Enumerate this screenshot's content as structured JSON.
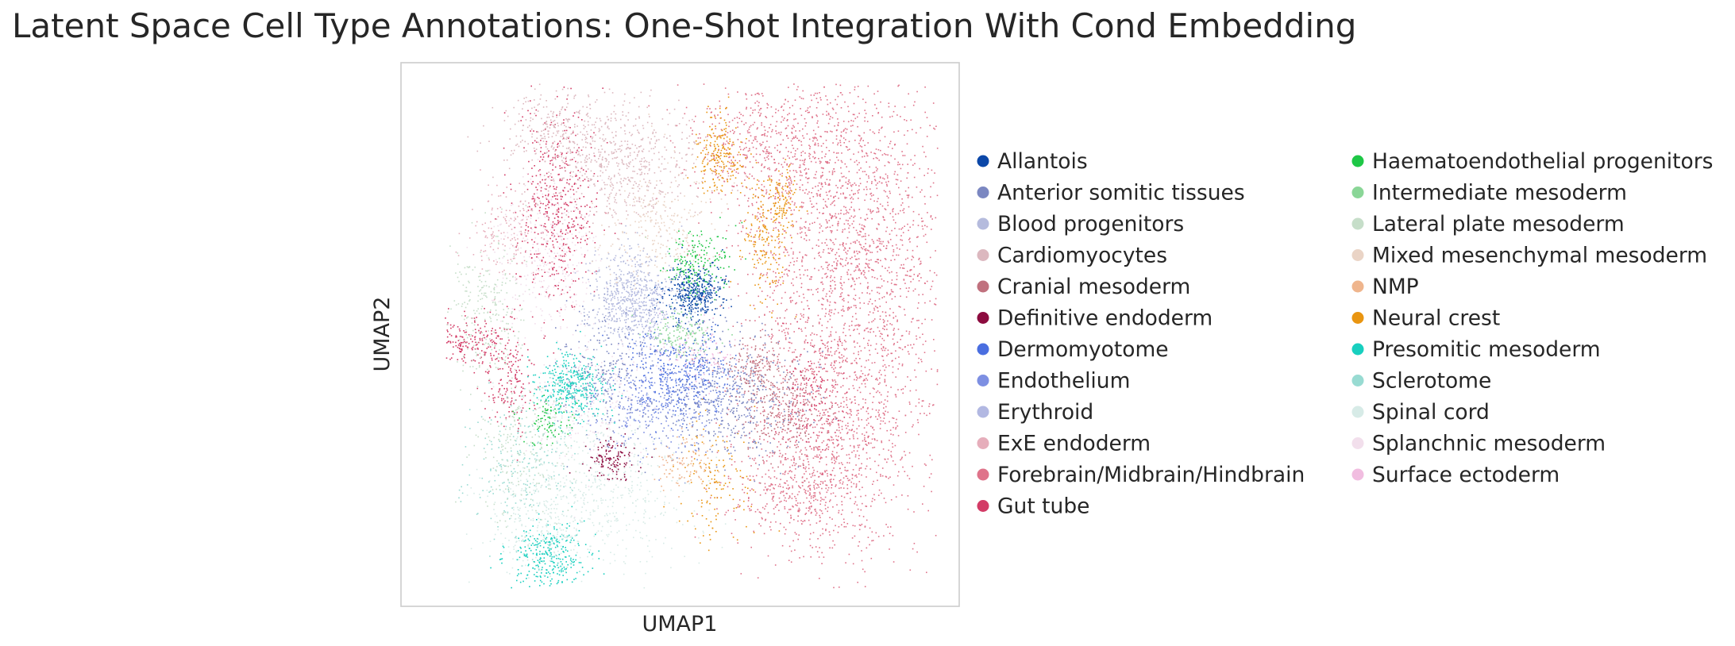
{
  "chart_data": {
    "type": "scatter",
    "title": "Latent Space Cell Type Annotations: One-Shot Integration With Cond Embedding",
    "xlabel": "UMAP1",
    "ylabel": "UMAP2",
    "grid": false,
    "axis_ticks": "none",
    "legend_position": "right, two columns",
    "series": [
      {
        "name": "Allantois",
        "color": "#0b47a8"
      },
      {
        "name": "Anterior somitic tissues",
        "color": "#7b87c1"
      },
      {
        "name": "Blood progenitors",
        "color": "#b5bbdd"
      },
      {
        "name": "Cardiomyocytes",
        "color": "#dcb8bf"
      },
      {
        "name": "Cranial mesoderm",
        "color": "#c0717e"
      },
      {
        "name": "Definitive endoderm",
        "color": "#8c0b3f"
      },
      {
        "name": "Dermomyotome",
        "color": "#4a6ee0"
      },
      {
        "name": "Endothelium",
        "color": "#7d8fe2"
      },
      {
        "name": "Erythroid",
        "color": "#b2b8e2"
      },
      {
        "name": "ExE endoderm",
        "color": "#e6aebb"
      },
      {
        "name": "Forebrain/Midbrain/Hindbrain",
        "color": "#df738a"
      },
      {
        "name": "Gut tube",
        "color": "#d33b66"
      },
      {
        "name": "Haematoendothelial progenitors",
        "color": "#1ec746"
      },
      {
        "name": "Intermediate mesoderm",
        "color": "#8ad697"
      },
      {
        "name": "Lateral plate mesoderm",
        "color": "#c6dec9"
      },
      {
        "name": "Mixed mesenchymal mesoderm",
        "color": "#ead4c6"
      },
      {
        "name": "NMP",
        "color": "#efb58d"
      },
      {
        "name": "Neural crest",
        "color": "#e99511"
      },
      {
        "name": "Presomitic mesoderm",
        "color": "#18cfbf"
      },
      {
        "name": "Sclerotome",
        "color": "#98dbd2"
      },
      {
        "name": "Spinal cord",
        "color": "#d7ebe7"
      },
      {
        "name": "Splanchnic mesoderm",
        "color": "#f2dfec"
      },
      {
        "name": "Surface ectoderm",
        "color": "#f1bde0"
      }
    ]
  }
}
